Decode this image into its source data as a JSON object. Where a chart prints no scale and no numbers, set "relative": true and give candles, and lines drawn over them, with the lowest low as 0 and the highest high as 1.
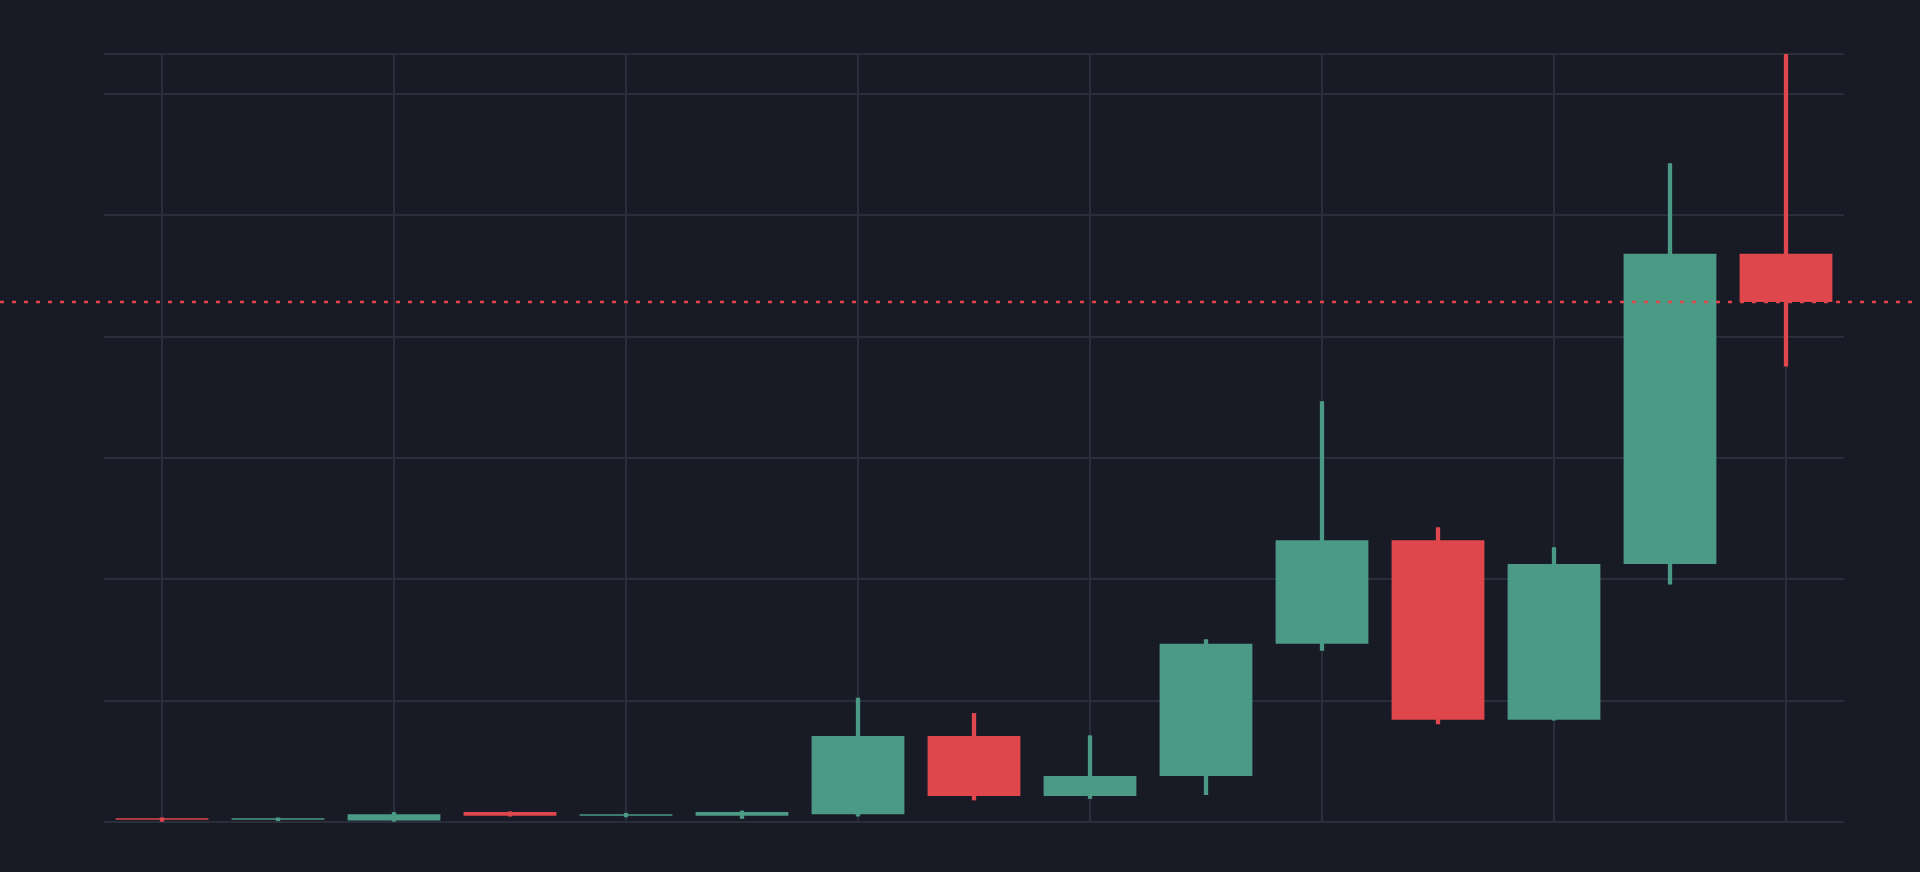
{
  "chart_data": {
    "type": "candlestick",
    "relative": true,
    "grid": true,
    "categories": [
      null,
      null,
      null,
      null,
      null,
      null,
      null,
      null,
      null,
      null,
      null,
      null,
      null,
      null,
      null
    ],
    "ohlc": [
      [
        0.005,
        0.005,
        0,
        0.003
      ],
      [
        0.003,
        0.005,
        0.002,
        0.005
      ],
      [
        0.002,
        0.012,
        0,
        0.01
      ],
      [
        0.013,
        0.013,
        0.008,
        0.008
      ],
      [
        0.008,
        0.011,
        0.007,
        0.01
      ],
      [
        0.008,
        0.014,
        0.005,
        0.013
      ],
      [
        0.01,
        0.161,
        0.008,
        0.112
      ],
      [
        0.112,
        0.141,
        0.029,
        0.034
      ],
      [
        0.034,
        0.112,
        0.031,
        0.06
      ],
      [
        0.06,
        0.237,
        0.036,
        0.232
      ],
      [
        0.232,
        0.547,
        0.224,
        0.367
      ],
      [
        0.367,
        0.383,
        0.128,
        0.133
      ],
      [
        0.133,
        0.357,
        0.133,
        0.336
      ],
      [
        0.336,
        0.857,
        0.31,
        0.74
      ],
      [
        0.74,
        1,
        0.594,
        0.677
      ]
    ],
    "colors": [
      "#e0474c",
      "#4a9a86",
      "#4a9a86",
      "#e0474c",
      "#4a9a86",
      "#4a9a86",
      "#4a9a86",
      "#e0474c",
      "#4a9a86",
      "#4a9a86",
      "#4a9a86",
      "#e0474c",
      "#4a9a86",
      "#4a9a86",
      "#e0474c"
    ],
    "ref_lines": [
      {
        "axis": "y",
        "value": 0.677,
        "color": "#e0474c",
        "line_style": "dotted"
      }
    ]
  }
}
